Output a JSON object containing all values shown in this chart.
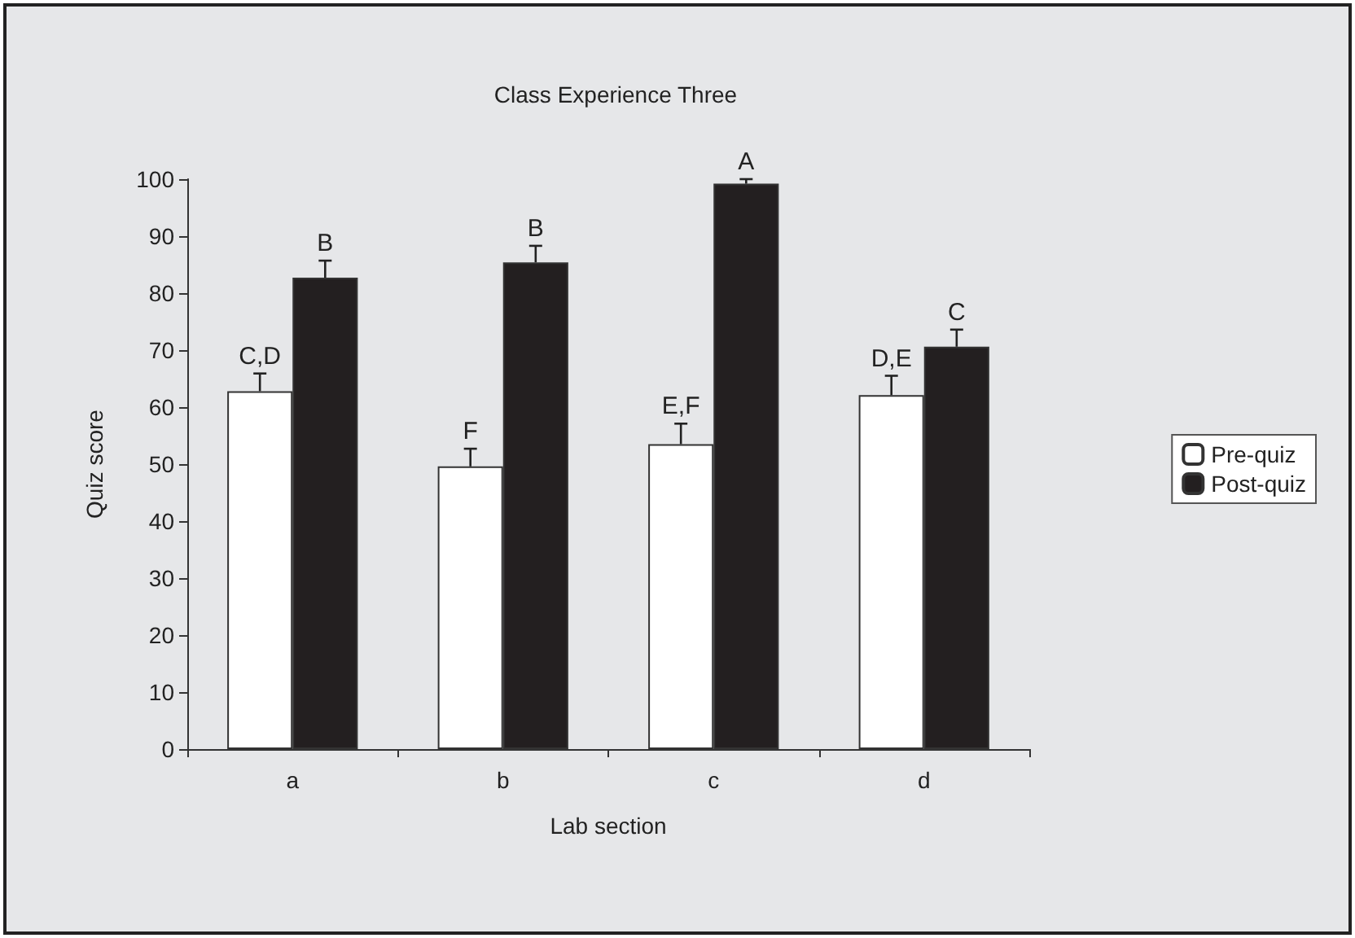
{
  "chart_data": {
    "type": "bar",
    "title": "Class Experience Three",
    "xlabel": "Lab section",
    "ylabel": "Quiz score",
    "categories": [
      "a",
      "b",
      "c",
      "d"
    ],
    "series": [
      {
        "name": "Pre-quiz",
        "color": "#ffffff",
        "values": [
          62.8,
          49.6,
          53.5,
          62.1
        ],
        "errors": [
          [
            62.8,
            65.9
          ],
          [
            49.6,
            52.7
          ],
          [
            53.5,
            57.1
          ],
          [
            62.1,
            65.5
          ]
        ],
        "value_labels": [
          "C,D",
          "F",
          "E,F",
          "D,E"
        ]
      },
      {
        "name": "Post-quiz",
        "color": "#231f20",
        "values": [
          82.7,
          85.4,
          99.2,
          70.6
        ],
        "errors": [
          [
            82.7,
            85.7
          ],
          [
            85.4,
            88.3
          ],
          [
            99.2,
            100
          ],
          [
            70.6,
            73.6
          ]
        ],
        "value_labels": [
          "B",
          "B",
          "A",
          "C"
        ]
      }
    ],
    "ylim": [
      0,
      100
    ],
    "yticks": [
      0,
      10,
      20,
      30,
      40,
      50,
      60,
      70,
      80,
      90,
      100
    ],
    "grid": false,
    "legend": "right"
  }
}
